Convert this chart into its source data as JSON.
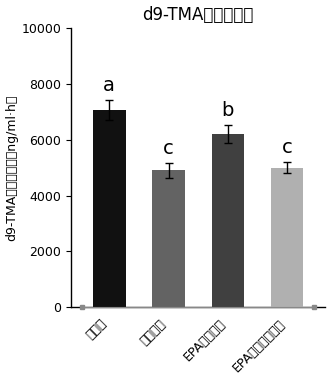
{
  "title": "d9-TMA曲线下面积",
  "ylabel": "d9-TMA曲线下面积（ng/ml·h）",
  "categories": [
    "正常组",
    "抗生素组",
    "EPA－磷脂组",
    "EPA－缩醇磷脂组"
  ],
  "values": [
    7050,
    4900,
    6200,
    5000
  ],
  "errors": [
    360,
    260,
    320,
    210
  ],
  "bar_colors": [
    "#111111",
    "#636363",
    "#404040",
    "#b0b0b0"
  ],
  "bar_width": 0.55,
  "ylim": [
    0,
    10000
  ],
  "yticks": [
    0,
    2000,
    4000,
    6000,
    8000,
    10000
  ],
  "significance_labels": [
    "a",
    "c",
    "b",
    "c"
  ],
  "sig_fontsize": 14,
  "tick_fontsize": 9,
  "title_fontsize": 12,
  "ylabel_fontsize": 9,
  "xlabel_fontsize": 9
}
